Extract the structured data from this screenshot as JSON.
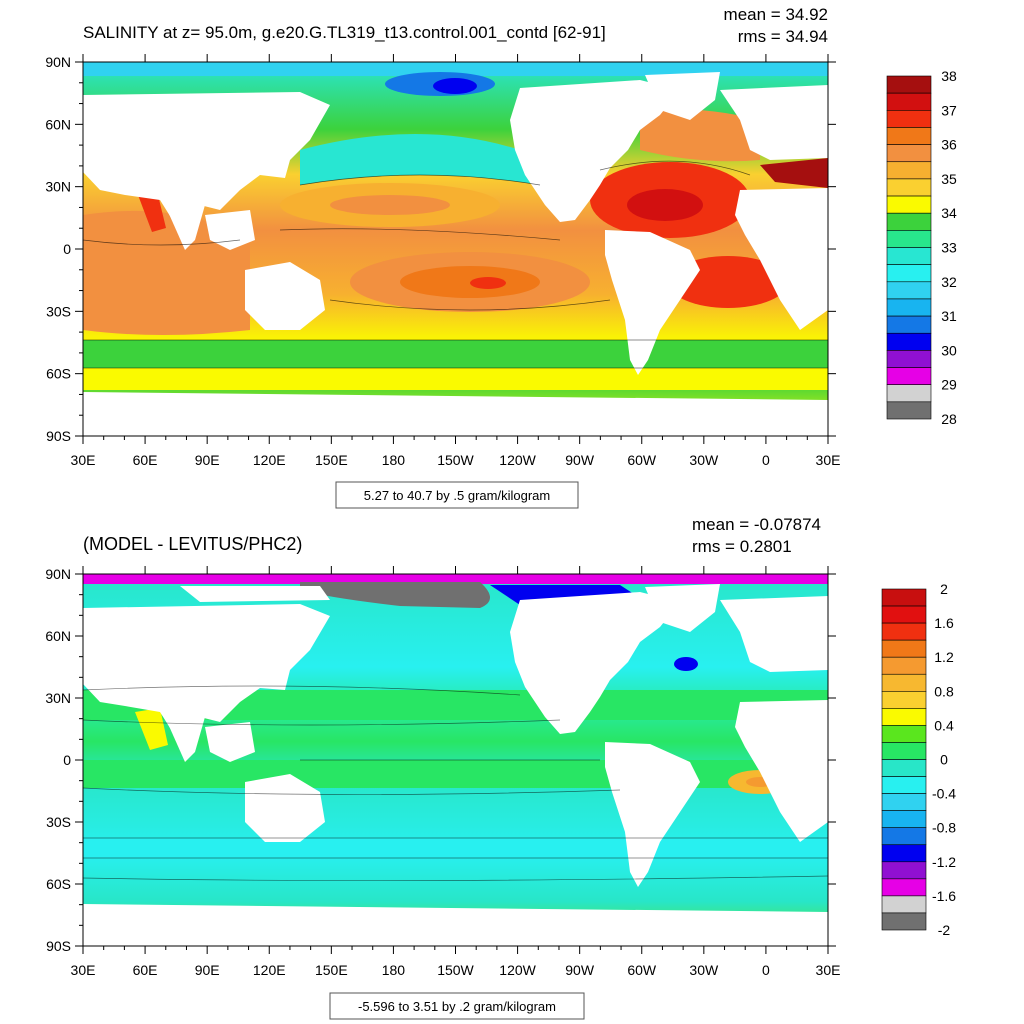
{
  "panels": [
    {
      "id": "salinity",
      "title": "SALINITY at z=  95.0m, g.e20.G.TL319_t13.control.001_contd [62-91]",
      "mean_text": "mean = 34.92",
      "rms_text": "rms = 34.94",
      "range_text": "5.27 to 40.7 by .5 gram/kilogram",
      "lat_labels": [
        "90N",
        "60N",
        "30N",
        "0",
        "30S",
        "60S",
        "90S"
      ],
      "lon_labels": [
        "30E",
        "60E",
        "90E",
        "120E",
        "150E",
        "180",
        "150W",
        "120W",
        "90W",
        "60W",
        "30W",
        "0",
        "30E"
      ],
      "colorbar": {
        "labels": [
          "38",
          "37",
          "36",
          "35",
          "34",
          "33",
          "32",
          "31",
          "30",
          "29",
          "28"
        ],
        "colors": [
          "#a50f0f",
          "#d21010",
          "#f03010",
          "#f07818",
          "#f29040",
          "#f7b030",
          "#fad030",
          "#fafa00",
          "#3cd23c",
          "#28e68c",
          "#28e6d2",
          "#28f0f0",
          "#30d2f0",
          "#18b4f0",
          "#1478e6",
          "#0000f0",
          "#9010d2",
          "#e600e6",
          "#d2d2d2",
          "#707070"
        ]
      }
    },
    {
      "id": "difference",
      "title": "(MODEL - LEVITUS/PHC2)",
      "mean_text": "mean = -0.07874",
      "rms_text": "rms = 0.2801",
      "range_text": "-5.596 to 3.51 by .2 gram/kilogram",
      "lat_labels": [
        "90N",
        "60N",
        "30N",
        "0",
        "30S",
        "60S",
        "90S"
      ],
      "lon_labels": [
        "30E",
        "60E",
        "90E",
        "120E",
        "150E",
        "180",
        "150W",
        "120W",
        "90W",
        "60W",
        "30W",
        "0",
        "30E"
      ],
      "colorbar": {
        "labels": [
          "2",
          "1.6",
          "1.2",
          "0.8",
          "0.4",
          "0",
          "-0.4",
          "-0.8",
          "-1.2",
          "-1.6",
          "-2"
        ],
        "colors": [
          "#c80f0f",
          "#e11010",
          "#f03010",
          "#f07818",
          "#f59a30",
          "#f7b830",
          "#fad030",
          "#fafa00",
          "#5ae61e",
          "#28e664",
          "#28e6c8",
          "#28f0f0",
          "#30d2f0",
          "#18b4f0",
          "#1478e6",
          "#0000f0",
          "#9010d2",
          "#e600e6",
          "#d2d2d2",
          "#707070"
        ]
      }
    }
  ]
}
